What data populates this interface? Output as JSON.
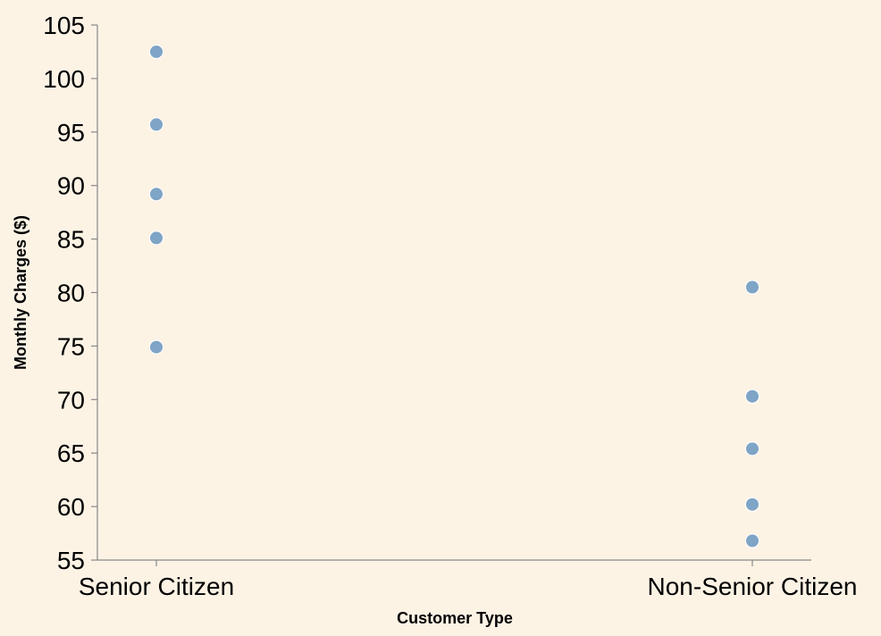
{
  "chart_data": {
    "type": "scatter",
    "title": "",
    "xlabel": "Customer Type",
    "ylabel": "Monthly Charges ($)",
    "categories": [
      "Senior Citizen",
      "Non-Senior Citizen"
    ],
    "points": [
      {
        "x": "Senior Citizen",
        "y": 102.5
      },
      {
        "x": "Senior Citizen",
        "y": 95.7
      },
      {
        "x": "Senior Citizen",
        "y": 89.2
      },
      {
        "x": "Senior Citizen",
        "y": 85.1
      },
      {
        "x": "Senior Citizen",
        "y": 74.9
      },
      {
        "x": "Non-Senior Citizen",
        "y": 80.5
      },
      {
        "x": "Non-Senior Citizen",
        "y": 70.3
      },
      {
        "x": "Non-Senior Citizen",
        "y": 65.4
      },
      {
        "x": "Non-Senior Citizen",
        "y": 60.2
      },
      {
        "x": "Non-Senior Citizen",
        "y": 56.8
      }
    ],
    "ylim": [
      55,
      105
    ],
    "yticks": [
      55,
      60,
      65,
      70,
      75,
      80,
      85,
      90,
      95,
      100,
      105
    ],
    "grid": false,
    "point_color": "#7ea4c6"
  }
}
